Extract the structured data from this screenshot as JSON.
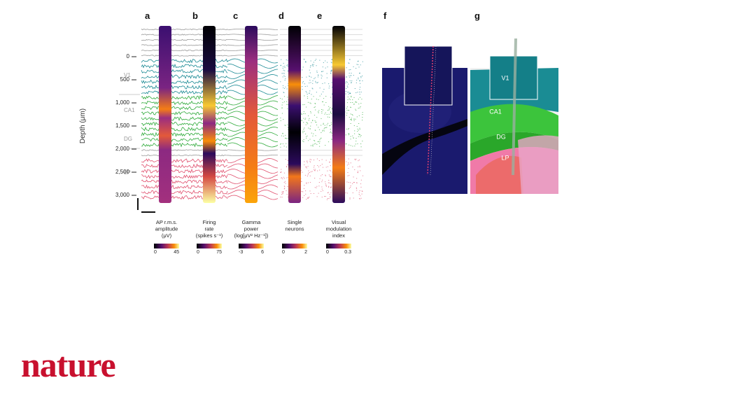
{
  "figure": {
    "panels": [
      "a",
      "b",
      "c",
      "d",
      "e",
      "f",
      "g"
    ],
    "depth_axis": {
      "label": "Depth (μm)",
      "ticks": [
        "0",
        "500",
        "1,000",
        "1,500",
        "2,000",
        "2,500",
        "3,000"
      ]
    },
    "regions": [
      "V1",
      "CA1",
      "DG",
      "LP"
    ],
    "colorbars": [
      {
        "caption": [
          "AP r.m.s.",
          "amplitude",
          "(μV)"
        ],
        "min": "0",
        "max": "45"
      },
      {
        "caption": [
          "Firing",
          "rate",
          "(spikes s⁻¹)"
        ],
        "min": "0",
        "max": "75"
      },
      {
        "caption": [
          "Gamma",
          "power",
          "(log[μV² Hz⁻¹])"
        ],
        "min": "-3",
        "max": "6"
      },
      {
        "caption": [
          "Single",
          "neurons"
        ],
        "min": "0",
        "max": "2"
      },
      {
        "caption": [
          "Visual",
          "modulation",
          "index"
        ],
        "min": "0",
        "max": "0.3"
      }
    ],
    "atlas_labels": [
      "V1",
      "CA1",
      "DG",
      "LP"
    ]
  },
  "footer": {
    "logo": "nature"
  }
}
